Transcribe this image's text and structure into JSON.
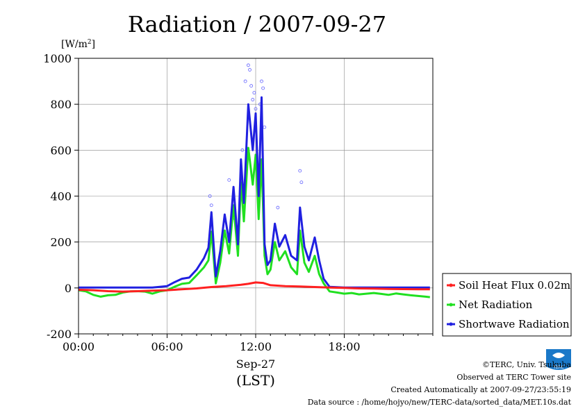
{
  "chart_data": {
    "type": "line",
    "title": "Radiation / 2007-09-27",
    "ylabel": "[W/m",
    "ylabel_sup": "2",
    "ylabel_close": "]",
    "xlabel_date": "Sep-27",
    "xlabel": "(LST)",
    "xlim": [
      0,
      24
    ],
    "ylim": [
      -200,
      1000
    ],
    "x_ticks": [
      0,
      6,
      12,
      18
    ],
    "x_tick_labels": [
      "00:00",
      "06:00",
      "12:00",
      "18:00"
    ],
    "y_ticks": [
      -200,
      0,
      200,
      400,
      600,
      800,
      1000
    ],
    "y_tick_labels": [
      "-200",
      "0",
      "200",
      "400",
      "600",
      "800",
      "1000"
    ],
    "grid": true,
    "legend_position": "right",
    "series": [
      {
        "name": "Soil Heat Flux 0.02m",
        "color": "#ff2020",
        "x": [
          0,
          1,
          2,
          3,
          4,
          5,
          6,
          7,
          8,
          9,
          10,
          11,
          11.5,
          12,
          12.5,
          13,
          14,
          15,
          16,
          17,
          18,
          19,
          20,
          21,
          22,
          23,
          23.8
        ],
        "y": [
          -8,
          -10,
          -14,
          -16,
          -14,
          -12,
          -10,
          -6,
          -2,
          4,
          8,
          14,
          18,
          24,
          22,
          12,
          8,
          6,
          4,
          2,
          0,
          -2,
          -3,
          -4,
          -5,
          -6,
          -6
        ]
      },
      {
        "name": "Net Radiation",
        "color": "#20e020",
        "x": [
          0,
          0.5,
          1,
          1.5,
          2,
          2.5,
          3,
          3.5,
          4,
          4.5,
          5,
          5.5,
          6,
          6.5,
          7,
          7.5,
          8,
          8.5,
          8.8,
          9,
          9.3,
          9.6,
          9.9,
          10.2,
          10.5,
          10.8,
          11,
          11.2,
          11.5,
          11.8,
          12,
          12.2,
          12.4,
          12.6,
          12.8,
          13,
          13.3,
          13.6,
          14,
          14.4,
          14.8,
          15,
          15.3,
          15.6,
          16,
          16.3,
          16.6,
          17,
          17.5,
          18,
          18.5,
          19,
          19.5,
          20,
          20.5,
          21,
          21.5,
          22,
          22.5,
          23,
          23.5,
          23.8
        ],
        "y": [
          -10,
          -15,
          -30,
          -38,
          -32,
          -30,
          -20,
          -15,
          -14,
          -16,
          -25,
          -15,
          -10,
          5,
          18,
          22,
          55,
          90,
          120,
          245,
          20,
          110,
          250,
          150,
          360,
          140,
          460,
          290,
          610,
          450,
          580,
          300,
          560,
          140,
          60,
          80,
          200,
          120,
          160,
          90,
          60,
          250,
          110,
          70,
          140,
          60,
          20,
          -15,
          -20,
          -25,
          -22,
          -28,
          -25,
          -22,
          -26,
          -30,
          -24,
          -28,
          -32,
          -35,
          -38,
          -40
        ]
      },
      {
        "name": "Shortwave Radiation",
        "color": "#2020e0",
        "x": [
          0,
          0.5,
          1,
          1.5,
          2,
          2.5,
          3,
          3.5,
          4,
          4.5,
          5,
          5.5,
          6,
          6.5,
          7,
          7.5,
          8,
          8.5,
          8.8,
          9,
          9.3,
          9.6,
          9.9,
          10.2,
          10.5,
          10.8,
          11,
          11.2,
          11.5,
          11.8,
          12,
          12.2,
          12.4,
          12.6,
          12.8,
          13,
          13.3,
          13.6,
          14,
          14.4,
          14.8,
          15,
          15.3,
          15.6,
          16,
          16.3,
          16.6,
          17,
          17.5,
          18,
          18.5,
          19,
          19.5,
          20,
          20.5,
          21,
          21.5,
          22,
          22.5,
          23,
          23.5,
          23.8
        ],
        "y": [
          2,
          2,
          2,
          2,
          2,
          2,
          2,
          2,
          2,
          2,
          2,
          5,
          8,
          25,
          40,
          45,
          80,
          130,
          175,
          330,
          50,
          160,
          320,
          200,
          440,
          190,
          560,
          370,
          800,
          600,
          760,
          400,
          830,
          190,
          100,
          120,
          280,
          180,
          230,
          140,
          120,
          350,
          180,
          120,
          220,
          120,
          40,
          5,
          3,
          2,
          2,
          2,
          2,
          2,
          2,
          2,
          2,
          2,
          2,
          2,
          2,
          2
        ]
      }
    ],
    "scatter_points": {
      "color": "#6060ff",
      "x": [
        8.9,
        9.0,
        10.2,
        10.6,
        11.1,
        11.3,
        11.5,
        11.6,
        11.7,
        11.8,
        11.9,
        12.0,
        12.3,
        12.4,
        12.5,
        12.6,
        13.5,
        15.0,
        15.1
      ],
      "y": [
        400,
        360,
        470,
        300,
        600,
        900,
        970,
        950,
        880,
        820,
        850,
        780,
        800,
        900,
        870,
        700,
        350,
        510,
        460
      ]
    }
  },
  "footer": {
    "copyright": "©TERC, Univ. Tsukuba",
    "observed": "Observed at TERC Tower site",
    "created": "Created Automatically at 2007-09-27/23:55:19",
    "source": "Data source : /home/hojyo/new/TERC-data/sorted_data/MET.10s.dat"
  }
}
